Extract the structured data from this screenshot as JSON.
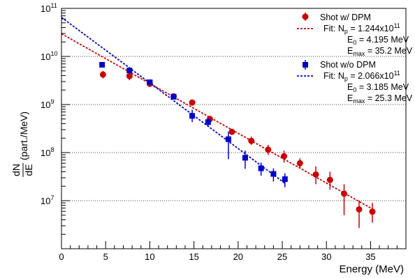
{
  "chart_data": {
    "type": "scatter",
    "title": "",
    "xlabel": "Energy (MeV)",
    "ylabel_num": "dN",
    "ylabel_den": "dE",
    "ylabel_unit": "(part./MeV)",
    "xlim": [
      0,
      39
    ],
    "ylim": [
      1000000,
      100000000000
    ],
    "yscale": "log",
    "grid": "horizontal-dotted",
    "legend_position": "top-right",
    "x_ticks": [
      0,
      5,
      10,
      15,
      20,
      25,
      30,
      35
    ],
    "x_tick_labels": [
      "0",
      "5",
      "10",
      "15",
      "20",
      "25",
      "30",
      "35"
    ],
    "y_ticks": [
      10000000,
      100000000,
      1000000000,
      10000000000,
      100000000000
    ],
    "y_tick_labels": [
      {
        "base": "10",
        "exp": "7"
      },
      {
        "base": "10",
        "exp": "8"
      },
      {
        "base": "10",
        "exp": "9"
      },
      {
        "base": "10",
        "exp": "10"
      },
      {
        "base": "10",
        "exp": "11"
      }
    ],
    "series": [
      {
        "name": "Shot w/ DPM",
        "color": "#cc0000",
        "marker": "circle",
        "points": [
          {
            "x": 4.7,
            "y": 4200000000,
            "lo": 3500000000,
            "hi": 5000000000
          },
          {
            "x": 7.7,
            "y": 3900000000,
            "lo": 3200000000,
            "hi": 4800000000
          },
          {
            "x": 10.0,
            "y": 2700000000,
            "lo": 2300000000,
            "hi": 3300000000
          },
          {
            "x": 12.7,
            "y": 1480000000,
            "lo": 1350000000,
            "hi": 1620000000
          },
          {
            "x": 14.8,
            "y": 1100000000,
            "lo": 1000000000,
            "hi": 1200000000
          },
          {
            "x": 16.8,
            "y": 500000000,
            "lo": 440000000,
            "hi": 580000000
          },
          {
            "x": 19.3,
            "y": 270000000,
            "lo": 240000000,
            "hi": 310000000
          },
          {
            "x": 21.5,
            "y": 175000000,
            "lo": 145000000,
            "hi": 215000000
          },
          {
            "x": 23.4,
            "y": 115000000,
            "lo": 90000000,
            "hi": 145000000
          },
          {
            "x": 25.2,
            "y": 84000000,
            "lo": 62000000,
            "hi": 110000000
          },
          {
            "x": 27.0,
            "y": 60000000,
            "lo": 48000000,
            "hi": 76000000
          },
          {
            "x": 28.8,
            "y": 35000000,
            "lo": 22000000,
            "hi": 52000000
          },
          {
            "x": 30.4,
            "y": 27000000,
            "lo": 17000000,
            "hi": 40000000
          },
          {
            "x": 32.0,
            "y": 14000000,
            "lo": 5000000,
            "hi": 22000000
          },
          {
            "x": 33.7,
            "y": 6600000,
            "lo": 2700000,
            "hi": 10000000
          },
          {
            "x": 35.2,
            "y": 5900000,
            "lo": 3500000,
            "hi": 9000000
          }
        ],
        "fit": {
          "label_prefix": "Fit: N",
          "np_sub": "p",
          "np_value": " = 1.244x10",
          "np_exp": "11",
          "e0_main": "E",
          "e0_sub": "0",
          "e0_value": " = 4.195 MeV",
          "emax_main": "E",
          "emax_sub": "max",
          "emax_value": " = 35.2 MeV",
          "Np": 124400000000,
          "E0": 4.195,
          "x_start": 0,
          "x_end": 35.2
        }
      },
      {
        "name": "Shot w/o DPM",
        "color": "#0000cc",
        "marker": "square",
        "points": [
          {
            "x": 4.6,
            "y": 6700000000,
            "lo": 6100000000,
            "hi": 7400000000
          },
          {
            "x": 7.7,
            "y": 5100000000,
            "lo": 4600000000,
            "hi": 5600000000
          },
          {
            "x": 10.0,
            "y": 2900000000,
            "lo": 2600000000,
            "hi": 3300000000
          },
          {
            "x": 12.7,
            "y": 1450000000,
            "lo": 1350000000,
            "hi": 1550000000
          },
          {
            "x": 14.8,
            "y": 580000000,
            "lo": 430000000,
            "hi": 780000000
          },
          {
            "x": 16.6,
            "y": 430000000,
            "lo": 360000000,
            "hi": 510000000
          },
          {
            "x": 18.9,
            "y": 190000000,
            "lo": 73000000,
            "hi": 270000000
          },
          {
            "x": 20.8,
            "y": 78000000,
            "lo": 46000000,
            "hi": 110000000
          },
          {
            "x": 22.6,
            "y": 47000000,
            "lo": 33000000,
            "hi": 62000000
          },
          {
            "x": 24.0,
            "y": 36000000,
            "lo": 25000000,
            "hi": 47000000
          },
          {
            "x": 25.3,
            "y": 28000000,
            "lo": 19000000,
            "hi": 37000000
          }
        ],
        "fit": {
          "label_prefix": "Fit: N",
          "np_sub": "p",
          "np_value": " = 2.066x10",
          "np_exp": "11",
          "e0_main": "E",
          "e0_sub": "0",
          "e0_value": " = 3.185 MeV",
          "emax_main": "E",
          "emax_sub": "max",
          "emax_value": " = 25.3 MeV",
          "Np": 206600000000,
          "E0": 3.185,
          "x_start": 0,
          "x_end": 25.3
        }
      }
    ]
  }
}
